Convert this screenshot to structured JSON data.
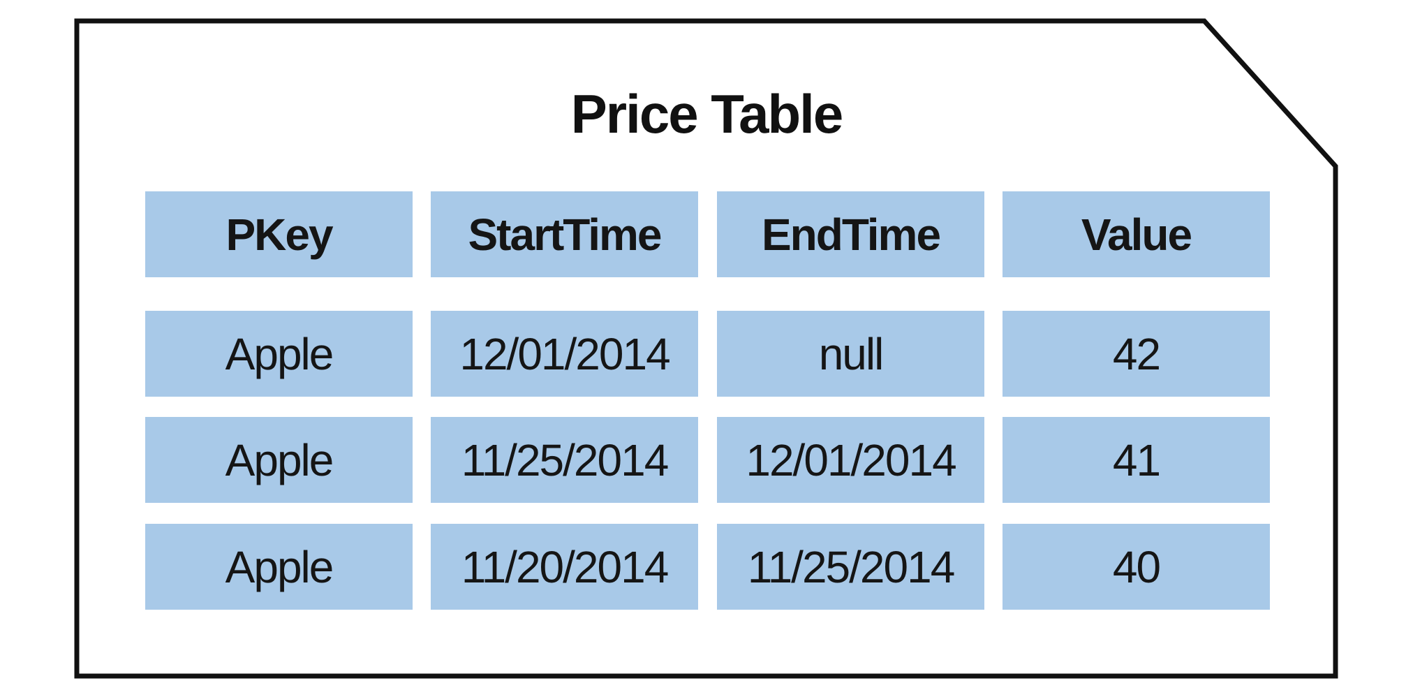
{
  "title": "Price Table",
  "columns": [
    "PKey",
    "StartTime",
    "EndTime",
    "Value"
  ],
  "rows": [
    [
      "Apple",
      "12/01/2014",
      "null",
      "42"
    ],
    [
      "Apple",
      "11/25/2014",
      "12/01/2014",
      "41"
    ],
    [
      "Apple",
      "11/20/2014",
      "11/25/2014",
      "40"
    ]
  ],
  "colors": {
    "cell_fill": "#a8c9e8",
    "border": "#111111",
    "text": "#151515"
  }
}
